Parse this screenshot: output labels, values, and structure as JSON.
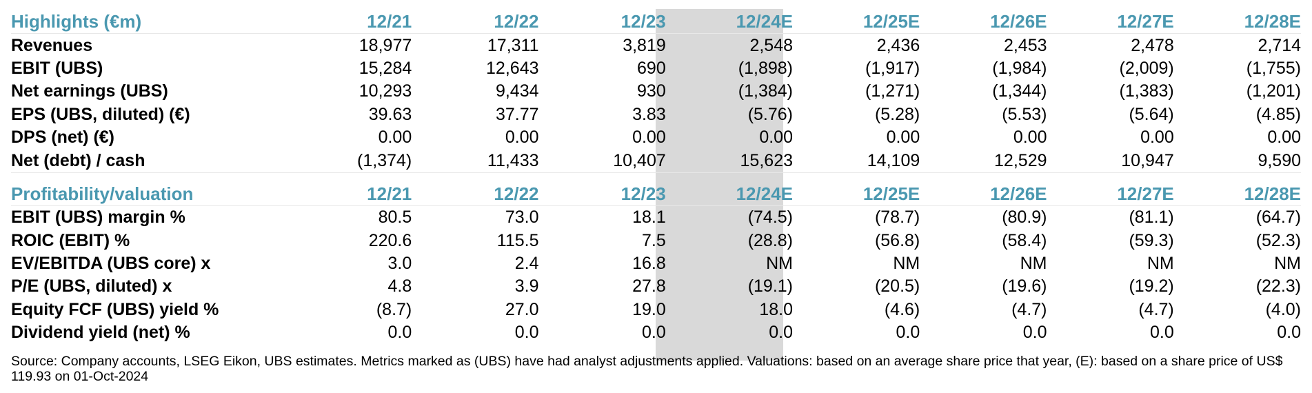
{
  "years": [
    "12/21",
    "12/22",
    "12/23",
    "12/24E",
    "12/25E",
    "12/26E",
    "12/27E",
    "12/28E"
  ],
  "sections": [
    {
      "title": "Highlights (€m)",
      "rows": [
        {
          "label": "Revenues",
          "values": [
            "18,977",
            "17,311",
            "3,819",
            "2,548",
            "2,436",
            "2,453",
            "2,478",
            "2,714"
          ]
        },
        {
          "label": "EBIT (UBS)",
          "values": [
            "15,284",
            "12,643",
            "690",
            "(1,898)",
            "(1,917)",
            "(1,984)",
            "(2,009)",
            "(1,755)"
          ]
        },
        {
          "label": "Net earnings (UBS)",
          "values": [
            "10,293",
            "9,434",
            "930",
            "(1,384)",
            "(1,271)",
            "(1,344)",
            "(1,383)",
            "(1,201)"
          ]
        },
        {
          "label": "EPS (UBS, diluted) (€)",
          "values": [
            "39.63",
            "37.77",
            "3.83",
            "(5.76)",
            "(5.28)",
            "(5.53)",
            "(5.64)",
            "(4.85)"
          ]
        },
        {
          "label": "DPS (net) (€)",
          "values": [
            "0.00",
            "0.00",
            "0.00",
            "0.00",
            "0.00",
            "0.00",
            "0.00",
            "0.00"
          ]
        },
        {
          "label": "Net (debt) / cash",
          "values": [
            "(1,374)",
            "11,433",
            "10,407",
            "15,623",
            "14,109",
            "12,529",
            "10,947",
            "9,590"
          ]
        }
      ]
    },
    {
      "title": "Profitability/valuation",
      "rows": [
        {
          "label": "EBIT (UBS) margin %",
          "values": [
            "80.5",
            "73.0",
            "18.1",
            "(74.5)",
            "(78.7)",
            "(80.9)",
            "(81.1)",
            "(64.7)"
          ]
        },
        {
          "label": "ROIC (EBIT) %",
          "values": [
            "220.6",
            "115.5",
            "7.5",
            "(28.8)",
            "(56.8)",
            "(58.4)",
            "(59.3)",
            "(52.3)"
          ]
        },
        {
          "label": "EV/EBITDA (UBS core) x",
          "values": [
            "3.0",
            "2.4",
            "16.8",
            "NM",
            "NM",
            "NM",
            "NM",
            "NM"
          ]
        },
        {
          "label": "P/E (UBS, diluted) x",
          "values": [
            "4.8",
            "3.9",
            "27.8",
            "(19.1)",
            "(20.5)",
            "(19.6)",
            "(19.2)",
            "(22.3)"
          ]
        },
        {
          "label": "Equity FCF (UBS) yield %",
          "values": [
            "(8.7)",
            "27.0",
            "19.0",
            "18.0",
            "(4.6)",
            "(4.7)",
            "(4.7)",
            "(4.0)"
          ]
        },
        {
          "label": "Dividend yield (net) %",
          "values": [
            "0.0",
            "0.0",
            "0.0",
            "0.0",
            "0.0",
            "0.0",
            "0.0",
            "0.0"
          ]
        }
      ]
    }
  ],
  "source_note": "Source: Company accounts, LSEG Eikon, UBS estimates. Metrics marked as (UBS) have had analyst adjustments applied. Valuations: based on an average share price that year, (E): based on a share price of US$ 119.93 on 01-Oct-2024",
  "colors": {
    "header_teal": "#4a98b0",
    "highlight_column": "#d9d9d9"
  }
}
